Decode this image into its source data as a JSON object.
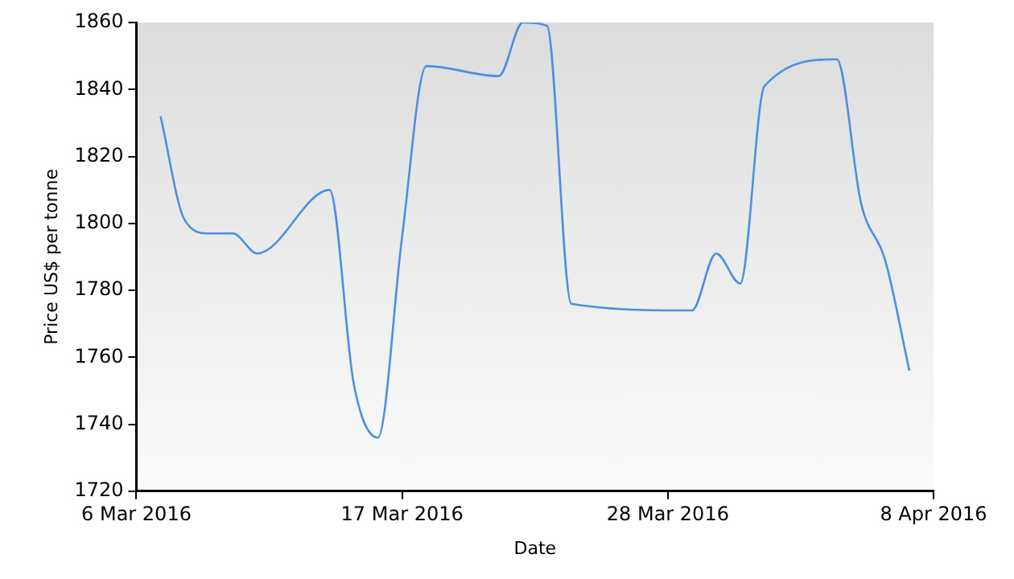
{
  "chart_data": {
    "type": "line",
    "xlabel": "Date",
    "ylabel": "Price US$ per tonne",
    "x": [
      "2016-03-07",
      "2016-03-08",
      "2016-03-09",
      "2016-03-10",
      "2016-03-11",
      "2016-03-14",
      "2016-03-15",
      "2016-03-16",
      "2016-03-17",
      "2016-03-18",
      "2016-03-21",
      "2016-03-22",
      "2016-03-23",
      "2016-03-24",
      "2016-03-29",
      "2016-03-30",
      "2016-03-31",
      "2016-04-01",
      "2016-04-04",
      "2016-04-05",
      "2016-04-06",
      "2016-04-07"
    ],
    "series": [
      {
        "color": "#4a90e2",
        "values": [
          1832,
          1801,
          1797,
          1797,
          1791,
          1810,
          1752,
          1736,
          1796,
          1847,
          1844,
          1860,
          1859,
          1776,
          1774,
          1791,
          1782,
          1841,
          1849,
          1806,
          1789,
          1756
        ]
      }
    ],
    "xlim": [
      "2016-03-06",
      "2016-04-08"
    ],
    "xticks": [
      {
        "value": "2016-03-06",
        "label": "6 Mar 2016"
      },
      {
        "value": "2016-03-17",
        "label": "17 Mar 2016"
      },
      {
        "value": "2016-03-28",
        "label": "28 Mar 2016"
      },
      {
        "value": "2016-04-08",
        "label": "8 Apr 2016"
      }
    ],
    "ylim": [
      1720,
      1860
    ],
    "yticks": [
      1720,
      1740,
      1760,
      1780,
      1800,
      1820,
      1840,
      1860
    ],
    "grid": false,
    "legend": false,
    "marker": "none",
    "line_style": "solid"
  }
}
